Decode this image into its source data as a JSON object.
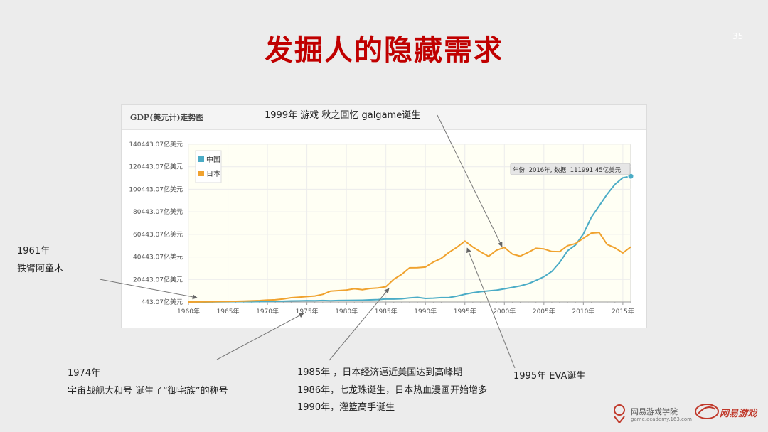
{
  "slide": {
    "title": "发掘人的隐藏需求",
    "page_number": "35"
  },
  "chart_data": {
    "type": "line",
    "title": "GDP(美元计)走势图",
    "x": [
      1960,
      1961,
      1962,
      1963,
      1964,
      1965,
      1966,
      1967,
      1968,
      1969,
      1970,
      1971,
      1972,
      1973,
      1974,
      1975,
      1976,
      1977,
      1978,
      1979,
      1980,
      1981,
      1982,
      1983,
      1984,
      1985,
      1986,
      1987,
      1988,
      1989,
      1990,
      1991,
      1992,
      1993,
      1994,
      1995,
      1996,
      1997,
      1998,
      1999,
      2000,
      2001,
      2002,
      2003,
      2004,
      2005,
      2006,
      2007,
      2008,
      2009,
      2010,
      2011,
      2012,
      2013,
      2014,
      2015,
      2016
    ],
    "x_tick_labels": [
      "1960年",
      "1965年",
      "1970年",
      "1975年",
      "1980年",
      "1985年",
      "1990年",
      "1995年",
      "2000年",
      "2005年",
      "2010年",
      "2015年"
    ],
    "x_ticks": [
      1960,
      1965,
      1970,
      1975,
      1980,
      1985,
      1990,
      1995,
      2000,
      2005,
      2010,
      2015
    ],
    "y_tick_labels": [
      "443.07亿美元",
      "20443.07亿美元",
      "40443.07亿美元",
      "60443.07亿美元",
      "80443.07亿美元",
      "100443.07亿美元",
      "120443.07亿美元",
      "140443.07亿美元"
    ],
    "y_ticks": [
      443.07,
      20443.07,
      40443.07,
      60443.07,
      80443.07,
      100443.07,
      120443.07,
      140443.07
    ],
    "ylim": [
      443.07,
      140443.07
    ],
    "xlim": [
      1960,
      2016
    ],
    "grid": true,
    "legend_position": "top-left",
    "series": [
      {
        "name": "中国",
        "color": "#4bacc6",
        "values": [
          597,
          500,
          472,
          507,
          597,
          704,
          767,
          727,
          707,
          797,
          926,
          998,
          1137,
          1385,
          1441,
          1634,
          1539,
          1749,
          1495,
          1783,
          1911,
          1958,
          2051,
          2306,
          2599,
          3094,
          3007,
          3273,
          4078,
          4569,
          3609,
          3834,
          4269,
          4447,
          5643,
          7345,
          8637,
          9616,
          10290,
          10940,
          12110,
          13390,
          14710,
          16600,
          19550,
          22860,
          27520,
          35500,
          45940,
          51010,
          60870,
          75520,
          85700,
          96070,
          104820,
          110650,
          111991.45
        ]
      },
      {
        "name": "日本",
        "color": "#f0a22e",
        "values": [
          443,
          535,
          606,
          696,
          814,
          910,
          1049,
          1237,
          1467,
          1723,
          2127,
          2404,
          3127,
          4244,
          4715,
          5216,
          5761,
          7212,
          10090,
          10540,
          11050,
          12180,
          11340,
          12430,
          12950,
          13990,
          20650,
          24960,
          30780,
          30910,
          31390,
          35840,
          39090,
          44540,
          49070,
          54490,
          49230,
          44920,
          40980,
          46360,
          48880,
          43030,
          41150,
          44460,
          48150,
          47550,
          45300,
          45150,
          50380,
          52310,
          57000,
          61570,
          62030,
          51560,
          48500,
          43950,
          49400
        ]
      }
    ],
    "tooltip": "年份: 2016年, 数据: 111991.45亿美元"
  },
  "annotations": {
    "a1999": "1999年 游戏 秋之回忆   galgame诞生",
    "a1961_year": "1961年",
    "a1961_text": "铁臂阿童木",
    "a1974_year": "1974年",
    "a1974_text": "宇宙战舰大和号   诞生了“御宅族”的称号",
    "a1985": "1985年 ，日本经济逼近美国达到高峰期",
    "a1986": "1986年，七龙珠诞生，日本热血漫画开始增多",
    "a1990": "1990年，灌篮高手诞生",
    "a1995": "1995年 EVA诞生"
  },
  "footer": {
    "academy_name": "网易游戏学院",
    "academy_url": "game.academy.163.com",
    "brand_name": "网易游戏"
  }
}
